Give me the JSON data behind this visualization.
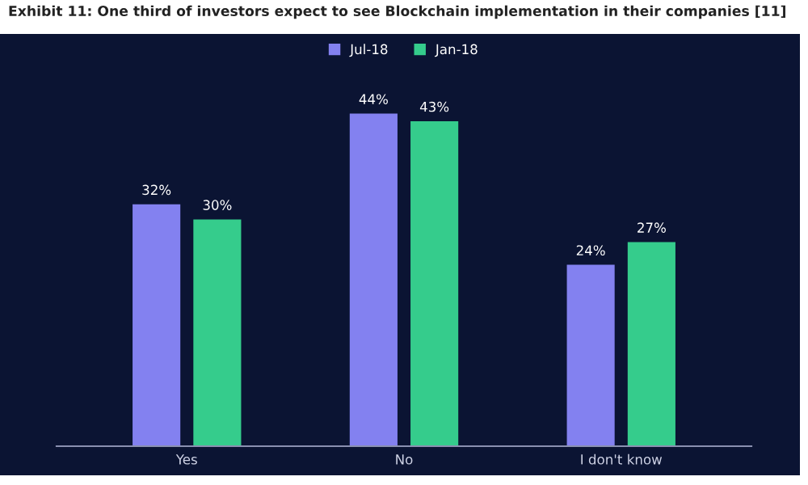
{
  "chart_data": {
    "type": "bar",
    "title": "Exhibit 11: One third of investors expect to see Blockchain implementation in their companies [11]",
    "categories": [
      "Yes",
      "No",
      "I don't know"
    ],
    "series": [
      {
        "name": "Jul-18",
        "color": "#8381f0",
        "values": [
          32,
          44,
          24
        ],
        "value_labels": [
          "32%",
          "44%",
          "24%"
        ]
      },
      {
        "name": "Jan-18",
        "color": "#35cc8c",
        "values": [
          30,
          43,
          27
        ],
        "value_labels": [
          "30%",
          "43%",
          "27%"
        ]
      }
    ],
    "legend": "top",
    "grid": false
  }
}
